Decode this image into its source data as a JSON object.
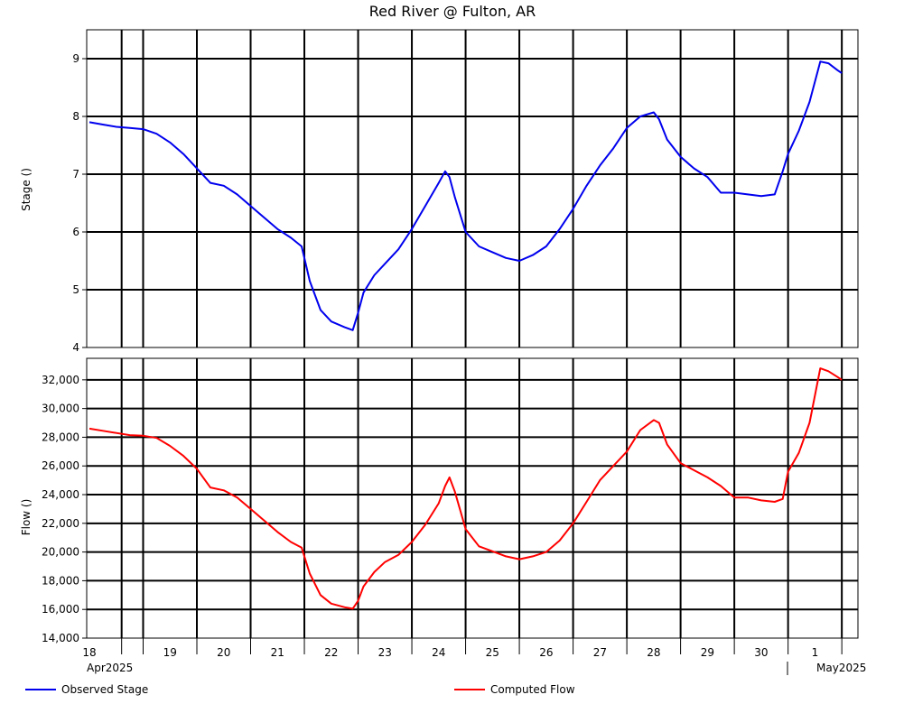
{
  "chart_data": [
    {
      "type": "line",
      "title": "Red River @ Fulton, AR",
      "ylabel": "Stage ()",
      "ylim": [
        4,
        9.5
      ],
      "yticks": [
        4,
        5,
        6,
        7,
        8,
        9
      ],
      "grid": true,
      "series": [
        {
          "name": "Observed Stage",
          "color": "#0000ee",
          "x": [
            18.0,
            18.25,
            18.5,
            18.75,
            19.0,
            19.25,
            19.5,
            19.75,
            20.0,
            20.25,
            20.5,
            20.75,
            21.0,
            21.25,
            21.5,
            21.75,
            21.95,
            22.1,
            22.3,
            22.5,
            22.75,
            22.9,
            23.0,
            23.1,
            23.3,
            23.5,
            23.75,
            24.0,
            24.25,
            24.5,
            24.62,
            24.7,
            24.8,
            25.0,
            25.25,
            25.5,
            25.75,
            26.0,
            26.25,
            26.5,
            26.75,
            27.0,
            27.25,
            27.5,
            27.75,
            28.0,
            28.25,
            28.5,
            28.6,
            28.75,
            29.0,
            29.25,
            29.5,
            29.75,
            30.0,
            30.25,
            30.5,
            30.75,
            30.9,
            31.0,
            31.2,
            31.4,
            31.6,
            31.75,
            31.92,
            32.0
          ],
          "y": [
            7.9,
            7.86,
            7.82,
            7.8,
            7.78,
            7.7,
            7.55,
            7.35,
            7.1,
            6.85,
            6.8,
            6.65,
            6.45,
            6.25,
            6.05,
            5.9,
            5.75,
            5.15,
            4.65,
            4.45,
            4.35,
            4.3,
            4.6,
            4.95,
            5.25,
            5.45,
            5.7,
            6.05,
            6.45,
            6.85,
            7.05,
            6.95,
            6.6,
            6.0,
            5.75,
            5.65,
            5.55,
            5.5,
            5.6,
            5.75,
            6.05,
            6.4,
            6.8,
            7.15,
            7.45,
            7.8,
            8.0,
            8.07,
            7.95,
            7.6,
            7.3,
            7.1,
            6.95,
            6.68,
            6.68,
            6.65,
            6.62,
            6.65,
            7.05,
            7.35,
            7.75,
            8.25,
            8.95,
            8.92,
            8.8,
            8.75
          ]
        }
      ]
    },
    {
      "type": "line",
      "ylabel": "Flow ()",
      "ylim": [
        14000,
        33500
      ],
      "yticks": [
        14000,
        16000,
        18000,
        20000,
        22000,
        24000,
        26000,
        28000,
        30000,
        32000
      ],
      "ytick_labels": [
        "14,000",
        "16,000",
        "18,000",
        "20,000",
        "22,000",
        "24,000",
        "26,000",
        "28,000",
        "30,000",
        "32,000"
      ],
      "grid": true,
      "series": [
        {
          "name": "Computed Flow",
          "color": "#ff0000",
          "x": [
            18.0,
            18.25,
            18.5,
            18.75,
            19.0,
            19.25,
            19.5,
            19.75,
            20.0,
            20.25,
            20.5,
            20.75,
            21.0,
            21.25,
            21.5,
            21.75,
            21.95,
            22.1,
            22.3,
            22.5,
            22.75,
            22.9,
            23.0,
            23.1,
            23.3,
            23.5,
            23.75,
            24.0,
            24.25,
            24.5,
            24.62,
            24.7,
            24.8,
            25.0,
            25.25,
            25.5,
            25.75,
            26.0,
            26.25,
            26.5,
            26.75,
            27.0,
            27.25,
            27.5,
            27.75,
            28.0,
            28.25,
            28.5,
            28.6,
            28.75,
            29.0,
            29.25,
            29.5,
            29.75,
            30.0,
            30.25,
            30.5,
            30.75,
            30.9,
            31.0,
            31.2,
            31.4,
            31.6,
            31.75,
            31.92,
            32.0
          ],
          "y": [
            28600,
            28450,
            28300,
            28150,
            28100,
            27950,
            27400,
            26700,
            25800,
            24500,
            24300,
            23800,
            23000,
            22200,
            21400,
            20700,
            20300,
            18500,
            17000,
            16400,
            16150,
            16050,
            16600,
            17600,
            18600,
            19300,
            19800,
            20700,
            21900,
            23400,
            24600,
            25200,
            24200,
            21600,
            20400,
            20050,
            19700,
            19500,
            19700,
            20000,
            20800,
            22000,
            23500,
            25000,
            26000,
            27000,
            28500,
            29200,
            29000,
            27500,
            26200,
            25700,
            25200,
            24600,
            23800,
            23800,
            23600,
            23500,
            23700,
            25600,
            26900,
            29000,
            32800,
            32600,
            32200,
            32000
          ]
        }
      ]
    }
  ],
  "x_axis": {
    "xlim": [
      17.95,
      32.3
    ],
    "major_grid": [
      18.6,
      19.0,
      20.0,
      21.0,
      22.0,
      23.0,
      24.0,
      25.0,
      26.0,
      27.0,
      28.0,
      29.0,
      30.0,
      31.0,
      32.0
    ],
    "day_labels": [
      {
        "x": 18.0,
        "label": "18"
      },
      {
        "x": 19.5,
        "label": "19"
      },
      {
        "x": 20.5,
        "label": "20"
      },
      {
        "x": 21.5,
        "label": "21"
      },
      {
        "x": 22.5,
        "label": "22"
      },
      {
        "x": 23.5,
        "label": "23"
      },
      {
        "x": 24.5,
        "label": "24"
      },
      {
        "x": 25.5,
        "label": "25"
      },
      {
        "x": 26.5,
        "label": "26"
      },
      {
        "x": 27.5,
        "label": "27"
      },
      {
        "x": 28.5,
        "label": "28"
      },
      {
        "x": 29.5,
        "label": "29"
      },
      {
        "x": 30.5,
        "label": "30"
      },
      {
        "x": 31.5,
        "label": "1"
      }
    ],
    "month_labels": [
      "Apr2025",
      "May2025"
    ]
  },
  "legend": {
    "placement": "bottom",
    "items": [
      {
        "label": "Observed Stage",
        "color": "#0000ee"
      },
      {
        "label": "Computed Flow",
        "color": "#ff0000"
      }
    ]
  }
}
